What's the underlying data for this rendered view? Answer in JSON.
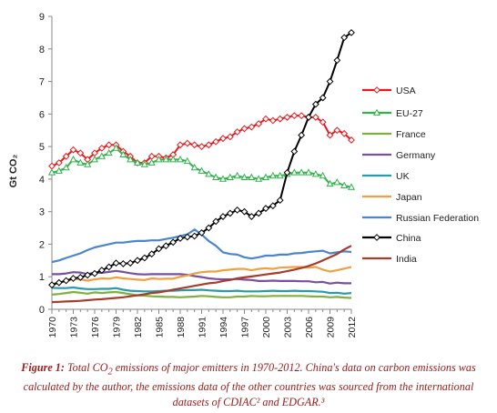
{
  "chart_data": {
    "type": "line",
    "title": "",
    "xlabel": "",
    "ylabel": "Gt CO₂",
    "ylim": [
      0,
      9
    ],
    "yticks": [
      0,
      1,
      2,
      3,
      4,
      5,
      6,
      7,
      8,
      9
    ],
    "xlim": [
      1970,
      2012
    ],
    "xticks": [
      1970,
      1973,
      1976,
      1979,
      1982,
      1985,
      1988,
      1991,
      1994,
      1997,
      2000,
      2003,
      2006,
      2009,
      2012
    ],
    "grid": false,
    "legend": "right",
    "x": [
      1970,
      1971,
      1972,
      1973,
      1974,
      1975,
      1976,
      1977,
      1978,
      1979,
      1980,
      1981,
      1982,
      1983,
      1984,
      1985,
      1986,
      1987,
      1988,
      1989,
      1990,
      1991,
      1992,
      1993,
      1994,
      1995,
      1996,
      1997,
      1998,
      1999,
      2000,
      2001,
      2002,
      2003,
      2004,
      2005,
      2006,
      2007,
      2008,
      2009,
      2010,
      2011,
      2012
    ],
    "series": [
      {
        "name": "USA",
        "color": "#e8191e",
        "marker": "diamond",
        "values": [
          4.4,
          4.5,
          4.7,
          4.9,
          4.8,
          4.6,
          4.8,
          4.95,
          5.05,
          5.05,
          4.85,
          4.7,
          4.5,
          4.5,
          4.7,
          4.7,
          4.65,
          4.75,
          5.05,
          5.1,
          5.05,
          5.0,
          5.05,
          5.15,
          5.25,
          5.3,
          5.45,
          5.55,
          5.6,
          5.7,
          5.85,
          5.8,
          5.85,
          5.9,
          5.95,
          5.95,
          5.9,
          5.9,
          5.75,
          5.35,
          5.5,
          5.4,
          5.2
        ]
      },
      {
        "name": "EU-27",
        "color": "#2fb34a",
        "marker": "triangle",
        "values": [
          4.2,
          4.25,
          4.35,
          4.6,
          4.5,
          4.45,
          4.6,
          4.7,
          4.8,
          4.95,
          4.75,
          4.6,
          4.5,
          4.45,
          4.5,
          4.6,
          4.6,
          4.6,
          4.6,
          4.55,
          4.35,
          4.25,
          4.15,
          4.05,
          4.0,
          4.05,
          4.1,
          4.05,
          4.05,
          4.0,
          4.05,
          4.1,
          4.1,
          4.15,
          4.2,
          4.2,
          4.2,
          4.15,
          4.1,
          3.85,
          3.9,
          3.8,
          3.75
        ]
      },
      {
        "name": "France",
        "color": "#7fb03d",
        "marker": "none",
        "values": [
          0.45,
          0.47,
          0.5,
          0.53,
          0.51,
          0.48,
          0.52,
          0.5,
          0.52,
          0.53,
          0.5,
          0.46,
          0.43,
          0.42,
          0.4,
          0.39,
          0.38,
          0.38,
          0.37,
          0.38,
          0.39,
          0.41,
          0.4,
          0.38,
          0.37,
          0.37,
          0.39,
          0.39,
          0.41,
          0.4,
          0.4,
          0.41,
          0.41,
          0.41,
          0.41,
          0.41,
          0.4,
          0.39,
          0.39,
          0.37,
          0.38,
          0.36,
          0.35
        ]
      },
      {
        "name": "Germany",
        "color": "#7a4fa0",
        "marker": "none",
        "values": [
          1.08,
          1.08,
          1.1,
          1.14,
          1.13,
          1.08,
          1.13,
          1.12,
          1.15,
          1.18,
          1.15,
          1.11,
          1.08,
          1.07,
          1.08,
          1.08,
          1.08,
          1.08,
          1.08,
          1.06,
          1.02,
          0.99,
          0.95,
          0.93,
          0.92,
          0.92,
          0.93,
          0.91,
          0.9,
          0.87,
          0.87,
          0.88,
          0.87,
          0.87,
          0.87,
          0.86,
          0.86,
          0.83,
          0.84,
          0.79,
          0.82,
          0.8,
          0.8
        ]
      },
      {
        "name": "UK",
        "color": "#2a9aaa",
        "marker": "none",
        "values": [
          0.66,
          0.65,
          0.65,
          0.67,
          0.64,
          0.62,
          0.62,
          0.63,
          0.63,
          0.65,
          0.6,
          0.57,
          0.56,
          0.55,
          0.55,
          0.56,
          0.57,
          0.57,
          0.58,
          0.59,
          0.59,
          0.6,
          0.58,
          0.57,
          0.56,
          0.56,
          0.57,
          0.55,
          0.55,
          0.55,
          0.56,
          0.57,
          0.56,
          0.56,
          0.57,
          0.56,
          0.56,
          0.55,
          0.54,
          0.5,
          0.51,
          0.48,
          0.5
        ]
      },
      {
        "name": "Japan",
        "color": "#f0a040",
        "marker": "none",
        "values": [
          0.78,
          0.82,
          0.86,
          0.93,
          0.92,
          0.88,
          0.92,
          0.95,
          0.94,
          0.98,
          0.95,
          0.93,
          0.91,
          0.9,
          0.95,
          0.93,
          0.94,
          0.94,
          1.0,
          1.04,
          1.1,
          1.14,
          1.16,
          1.16,
          1.2,
          1.22,
          1.24,
          1.24,
          1.2,
          1.24,
          1.26,
          1.24,
          1.28,
          1.29,
          1.3,
          1.3,
          1.28,
          1.3,
          1.22,
          1.16,
          1.2,
          1.25,
          1.3
        ]
      },
      {
        "name": "Russian Federation",
        "color": "#4a86d0",
        "marker": "none",
        "values": [
          1.45,
          1.5,
          1.58,
          1.65,
          1.72,
          1.82,
          1.9,
          1.95,
          2.0,
          2.05,
          2.05,
          2.08,
          2.1,
          2.1,
          2.12,
          2.12,
          2.16,
          2.2,
          2.25,
          2.3,
          2.45,
          2.3,
          2.1,
          1.95,
          1.75,
          1.7,
          1.68,
          1.6,
          1.56,
          1.6,
          1.65,
          1.65,
          1.68,
          1.68,
          1.72,
          1.73,
          1.76,
          1.78,
          1.8,
          1.72,
          1.75,
          1.78,
          1.76
        ]
      },
      {
        "name": "China",
        "color": "#000000",
        "marker": "diamond",
        "values": [
          0.75,
          0.82,
          0.88,
          0.95,
          0.98,
          1.05,
          1.1,
          1.2,
          1.3,
          1.42,
          1.4,
          1.42,
          1.5,
          1.58,
          1.7,
          1.86,
          1.95,
          2.06,
          2.18,
          2.22,
          2.25,
          2.35,
          2.5,
          2.7,
          2.85,
          2.95,
          3.05,
          3.0,
          2.85,
          2.95,
          3.1,
          3.18,
          3.35,
          4.2,
          4.85,
          5.35,
          5.9,
          6.3,
          6.5,
          7.0,
          7.65,
          8.35,
          8.5
        ]
      },
      {
        "name": "India",
        "color": "#a63c2a",
        "marker": "none",
        "values": [
          0.22,
          0.23,
          0.24,
          0.25,
          0.26,
          0.28,
          0.3,
          0.31,
          0.33,
          0.35,
          0.37,
          0.4,
          0.43,
          0.46,
          0.5,
          0.52,
          0.56,
          0.6,
          0.64,
          0.68,
          0.72,
          0.76,
          0.8,
          0.82,
          0.87,
          0.9,
          0.95,
          0.98,
          1.01,
          1.04,
          1.07,
          1.1,
          1.13,
          1.17,
          1.22,
          1.27,
          1.33,
          1.41,
          1.5,
          1.6,
          1.7,
          1.84,
          1.95
        ]
      }
    ]
  },
  "caption": {
    "label": "Figure 1:",
    "text_before": " Total CO",
    "subscript": "2",
    "text_after": " emissions of major emitters in 1970-2012. China's data on carbon emissions was calculated by the author, the emissions data of the other countries was sourced from the international datasets of CDIAC² and EDGAR.³"
  }
}
